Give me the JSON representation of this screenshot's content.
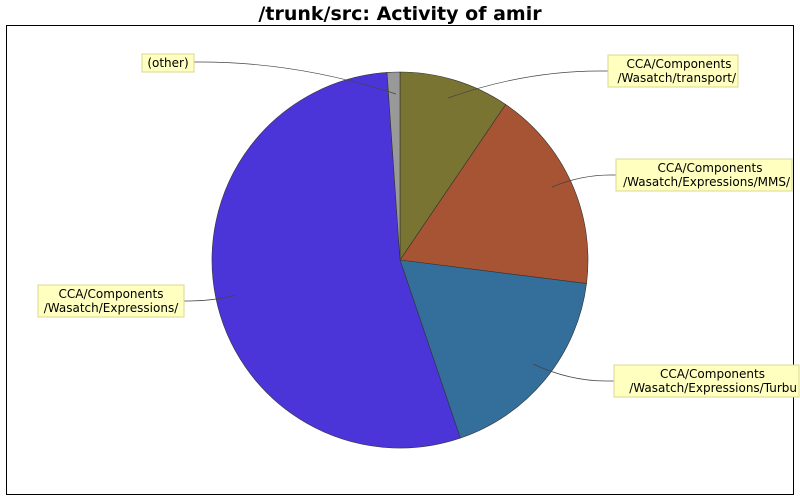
{
  "title": "/trunk/src: Activity of amir",
  "chart_data": {
    "type": "pie",
    "title": "/trunk/src: Activity of amir",
    "start_angle_deg": 0,
    "direction": "clockwise",
    "slices": [
      {
        "label": "CCA/Components /Wasatch/transport/",
        "lines": [
          "CCA/Components",
          "/Wasatch/transport/"
        ],
        "percent": 9.5,
        "color": "#7a7432"
      },
      {
        "label": "CCA/Components /Wasatch/Expressions/MMS/",
        "lines": [
          "CCA/Components",
          "/Wasatch/Expressions/MMS/"
        ],
        "percent": 17.5,
        "color": "#a65433"
      },
      {
        "label": "CCA/Components /Wasatch/Expressions/Turbu",
        "lines": [
          "CCA/Components",
          "/Wasatch/Expressions/Turbu"
        ],
        "percent": 17.8,
        "color": "#346e9b"
      },
      {
        "label": "CCA/Components /Wasatch/Expressions/",
        "lines": [
          "CCA/Components",
          "/Wasatch/Expressions/"
        ],
        "percent": 54.1,
        "color": "#4b35d9"
      },
      {
        "label": "(other)",
        "lines": [
          "(other)"
        ],
        "percent": 1.1,
        "color": "#999999"
      }
    ]
  }
}
